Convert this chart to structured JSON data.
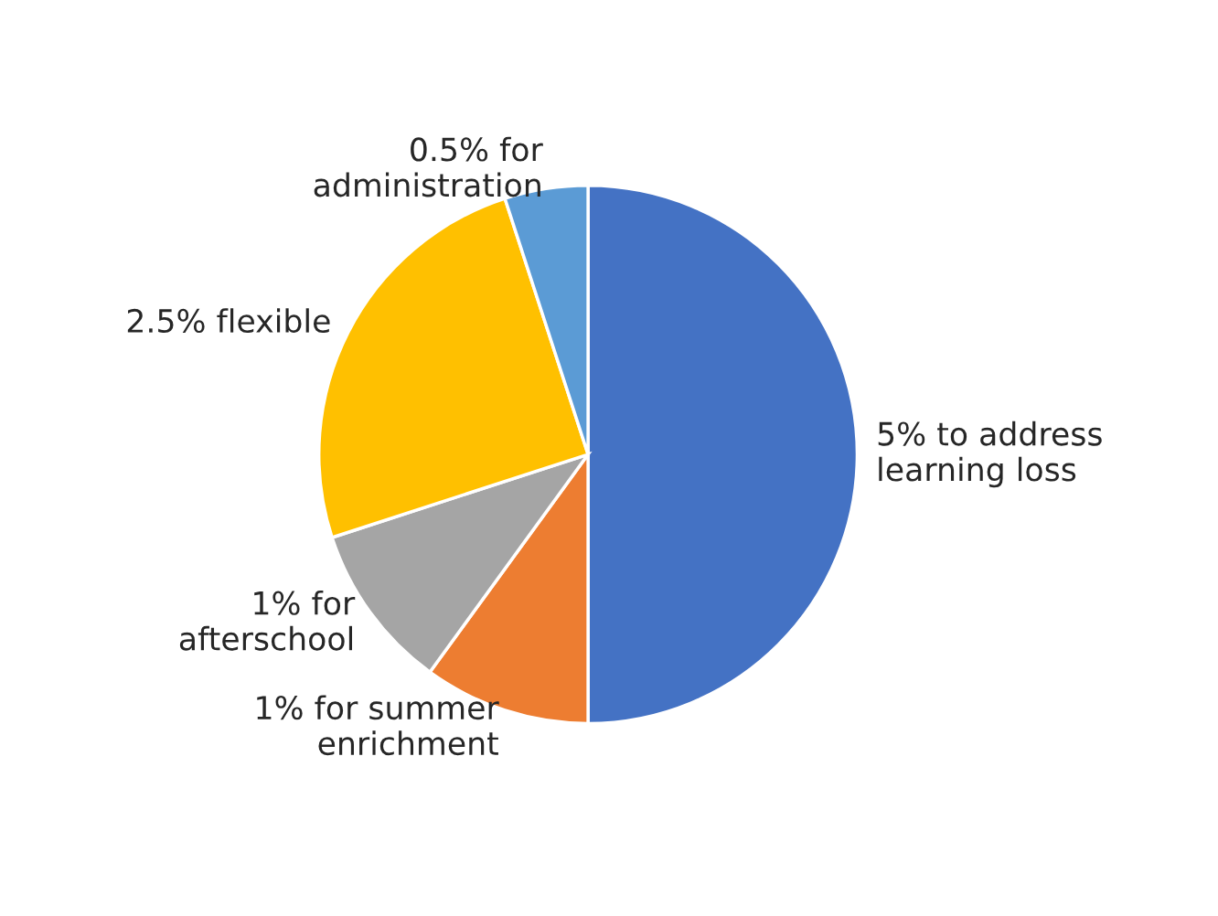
{
  "chart_data": {
    "type": "pie",
    "categories": [
      "5% to address\nlearning loss",
      "1% for summer\nenrichment",
      "1% for\nafterschool",
      "2.5% flexible",
      "0.5% for\nadministration"
    ],
    "values": [
      5,
      1,
      1,
      2.5,
      0.5
    ],
    "colors": [
      "#4472c4",
      "#ed7d31",
      "#a5a5a5",
      "#ffc000",
      "#5b9bd5"
    ],
    "legend": false
  }
}
